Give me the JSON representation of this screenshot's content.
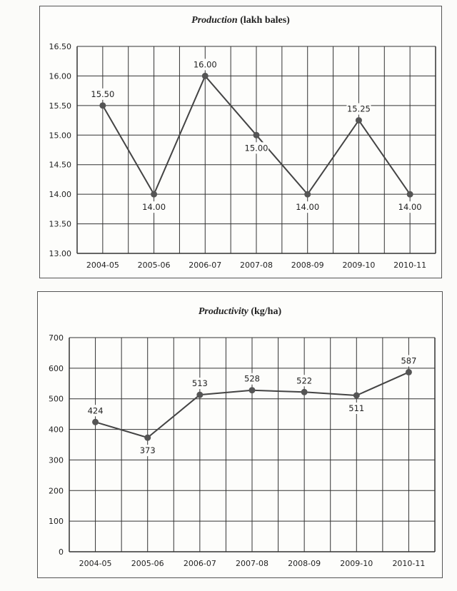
{
  "chart_data": [
    {
      "type": "line",
      "title_italic": "Production",
      "title_rest": "(lakh bales)",
      "categories": [
        "2004-05",
        "2005-06",
        "2006-07",
        "2007-08",
        "2008-09",
        "2009-10",
        "2010-11"
      ],
      "values": [
        15.5,
        14.0,
        16.0,
        15.0,
        14.0,
        15.25,
        14.0
      ],
      "data_labels": [
        "15.50",
        "14.00",
        "16.00",
        "15.00",
        "14.00",
        "15.25",
        "14.00"
      ],
      "label_positions": [
        "above",
        "below",
        "above",
        "below",
        "below",
        "above",
        "below"
      ],
      "yticks": [
        "13.00",
        "13.50",
        "14.00",
        "14.50",
        "15.00",
        "15.50",
        "16.00",
        "16.50"
      ],
      "ylim": [
        13.0,
        16.5
      ],
      "grid": true,
      "xlabel": "",
      "ylabel": ""
    },
    {
      "type": "line",
      "title_italic": "Productivity",
      "title_rest": "(kg/ha)",
      "categories": [
        "2004-05",
        "2005-06",
        "2006-07",
        "2007-08",
        "2008-09",
        "2009-10",
        "2010-11"
      ],
      "values": [
        424,
        373,
        513,
        528,
        522,
        511,
        587
      ],
      "data_labels": [
        "424",
        "373",
        "513",
        "528",
        "522",
        "511",
        "587"
      ],
      "label_positions": [
        "above",
        "below",
        "above",
        "above",
        "above",
        "below",
        "above"
      ],
      "yticks": [
        "0",
        "100",
        "200",
        "300",
        "400",
        "500",
        "600",
        "700"
      ],
      "ylim": [
        0,
        700
      ],
      "grid": true,
      "xlabel": "",
      "ylabel": ""
    }
  ]
}
